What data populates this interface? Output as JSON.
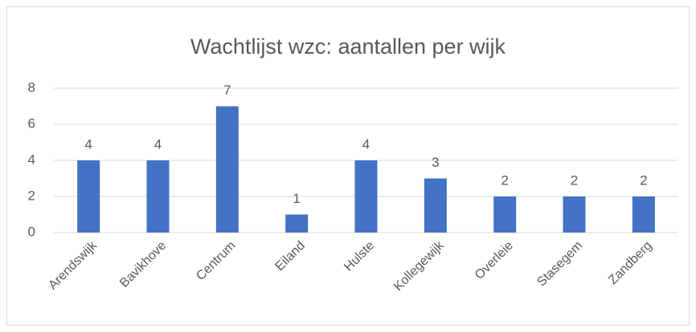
{
  "chart_data": {
    "type": "bar",
    "title": "Wachtlijst wzc: aantallen per wijk",
    "categories": [
      "Arendswijk",
      "Bavikhove",
      "Centrum",
      "Eiland",
      "Hulste",
      "Kollegewijk",
      "Overleie",
      "Stasegem",
      "Zandberg"
    ],
    "values": [
      4,
      4,
      7,
      1,
      4,
      3,
      2,
      2,
      2
    ],
    "color": "#4472c4",
    "ylim": [
      0,
      8
    ],
    "yticks": [
      0,
      2,
      4,
      6,
      8
    ],
    "grid": true
  }
}
